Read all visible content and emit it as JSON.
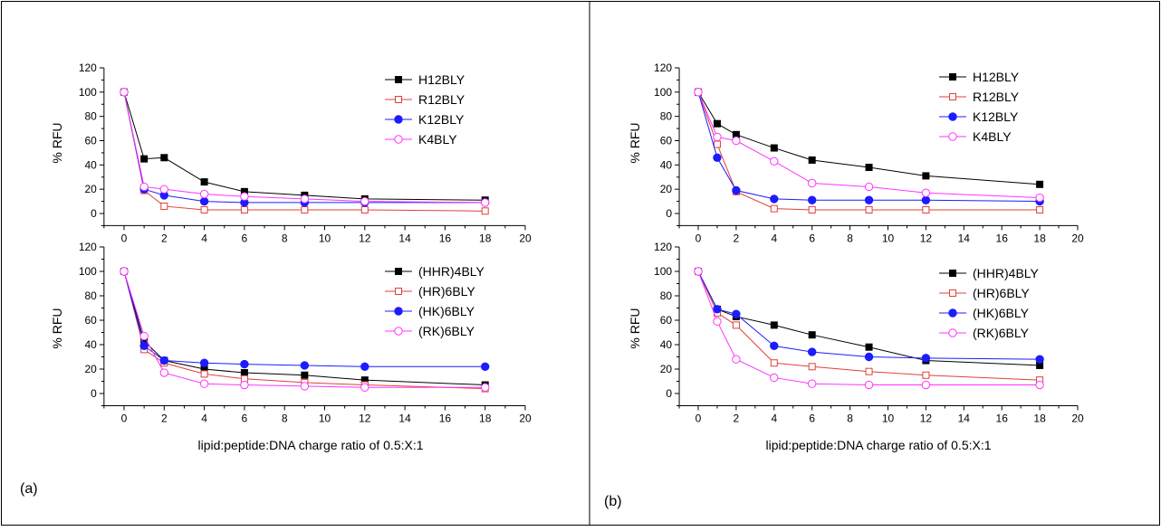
{
  "figure": {
    "panel_labels": [
      "(a)",
      "(b)"
    ],
    "ylabel": "% RFU",
    "xlabel": "lipid:peptide:DNA charge ratio of 0.5:X:1"
  },
  "colors": {
    "black": "#000000",
    "red": "#e0403a",
    "blue": "#1c1cff",
    "magenta": "#ff33ff"
  },
  "chart_data": [
    {
      "panel": "(a)",
      "position": "top",
      "type": "line",
      "ylabel": "% RFU",
      "xlabel": "",
      "xlim": [
        -1,
        20
      ],
      "ylim": [
        -10,
        120
      ],
      "xticks": [
        0,
        2,
        4,
        6,
        8,
        10,
        12,
        14,
        16,
        18,
        20
      ],
      "yticks": [
        0,
        20,
        40,
        60,
        80,
        100,
        120
      ],
      "legend": "top-right",
      "series": [
        {
          "name": "H12BLY",
          "color": "#000000",
          "marker": "square-filled",
          "x": [
            0,
            1,
            2,
            4,
            6,
            9,
            12,
            18
          ],
          "y": [
            100,
            45,
            46,
            26,
            18,
            15,
            12,
            11
          ]
        },
        {
          "name": "R12BLY",
          "color": "#e0403a",
          "marker": "square-open",
          "x": [
            0,
            1,
            2,
            4,
            6,
            9,
            12,
            18
          ],
          "y": [
            100,
            19,
            6,
            3,
            3,
            3,
            3,
            2
          ]
        },
        {
          "name": "K12BLY",
          "color": "#1c1cff",
          "marker": "circle-filled",
          "x": [
            0,
            1,
            2,
            4,
            6,
            9,
            12,
            18
          ],
          "y": [
            100,
            20,
            15,
            10,
            9,
            9,
            9,
            9
          ]
        },
        {
          "name": "K4BLY",
          "color": "#ff33ff",
          "marker": "circle-open",
          "x": [
            0,
            1,
            2,
            4,
            6,
            9,
            12,
            18
          ],
          "y": [
            100,
            22,
            20,
            16,
            14,
            12,
            10,
            9
          ]
        }
      ]
    },
    {
      "panel": "(a)",
      "position": "bottom",
      "type": "line",
      "ylabel": "% RFU",
      "xlabel": "lipid:peptide:DNA charge ratio of 0.5:X:1",
      "xlim": [
        -1,
        20
      ],
      "ylim": [
        -10,
        120
      ],
      "xticks": [
        0,
        2,
        4,
        6,
        8,
        10,
        12,
        14,
        16,
        18,
        20
      ],
      "yticks": [
        0,
        20,
        40,
        60,
        80,
        100,
        120
      ],
      "legend": "top-right",
      "series": [
        {
          "name": "(HHR)4BLY",
          "color": "#000000",
          "marker": "square-filled",
          "x": [
            0,
            1,
            2,
            4,
            6,
            9,
            12,
            18
          ],
          "y": [
            100,
            43,
            27,
            20,
            17,
            15,
            11,
            7
          ]
        },
        {
          "name": "(HR)6BLY",
          "color": "#e0403a",
          "marker": "square-open",
          "x": [
            0,
            1,
            2,
            4,
            6,
            9,
            12,
            18
          ],
          "y": [
            100,
            36,
            25,
            16,
            12,
            9,
            7,
            4
          ]
        },
        {
          "name": "(HK)6BLY",
          "color": "#1c1cff",
          "marker": "circle-filled",
          "x": [
            0,
            1,
            2,
            4,
            6,
            9,
            12,
            18
          ],
          "y": [
            100,
            39,
            27,
            25,
            24,
            23,
            22,
            22
          ]
        },
        {
          "name": "(RK)6BLY",
          "color": "#ff33ff",
          "marker": "circle-open",
          "x": [
            0,
            1,
            2,
            4,
            6,
            9,
            12,
            18
          ],
          "y": [
            100,
            47,
            17,
            8,
            7,
            6,
            5,
            5
          ]
        }
      ]
    },
    {
      "panel": "(b)",
      "position": "top",
      "type": "line",
      "ylabel": "% RFU",
      "xlabel": "",
      "xlim": [
        -1,
        20
      ],
      "ylim": [
        -10,
        120
      ],
      "xticks": [
        0,
        2,
        4,
        6,
        8,
        10,
        12,
        14,
        16,
        18,
        20
      ],
      "yticks": [
        0,
        20,
        40,
        60,
        80,
        100,
        120
      ],
      "legend": "top-right",
      "series": [
        {
          "name": "H12BLY",
          "color": "#000000",
          "marker": "square-filled",
          "x": [
            0,
            1,
            2,
            4,
            6,
            9,
            12,
            18
          ],
          "y": [
            100,
            74,
            65,
            54,
            44,
            38,
            31,
            24
          ]
        },
        {
          "name": "R12BLY",
          "color": "#e0403a",
          "marker": "square-open",
          "x": [
            0,
            1,
            2,
            4,
            6,
            9,
            12,
            18
          ],
          "y": [
            100,
            57,
            18,
            4,
            3,
            3,
            3,
            3
          ]
        },
        {
          "name": "K12BLY",
          "color": "#1c1cff",
          "marker": "circle-filled",
          "x": [
            0,
            1,
            2,
            4,
            6,
            9,
            12,
            18
          ],
          "y": [
            100,
            46,
            19,
            12,
            11,
            11,
            11,
            10
          ]
        },
        {
          "name": "K4BLY",
          "color": "#ff33ff",
          "marker": "circle-open",
          "x": [
            0,
            1,
            2,
            4,
            6,
            9,
            12,
            18
          ],
          "y": [
            100,
            63,
            60,
            43,
            25,
            22,
            17,
            13
          ]
        }
      ]
    },
    {
      "panel": "(b)",
      "position": "bottom",
      "type": "line",
      "ylabel": "% RFU",
      "xlabel": "lipid:peptide:DNA charge ratio of 0.5:X:1",
      "xlim": [
        -1,
        20
      ],
      "ylim": [
        -10,
        120
      ],
      "xticks": [
        0,
        2,
        4,
        6,
        8,
        10,
        12,
        14,
        16,
        18,
        20
      ],
      "yticks": [
        0,
        20,
        40,
        60,
        80,
        100,
        120
      ],
      "legend": "top-right",
      "series": [
        {
          "name": "(HHR)4BLY",
          "color": "#000000",
          "marker": "square-filled",
          "x": [
            0,
            1,
            2,
            4,
            6,
            9,
            12,
            18
          ],
          "y": [
            100,
            69,
            63,
            56,
            48,
            38,
            27,
            23
          ]
        },
        {
          "name": "(HR)6BLY",
          "color": "#e0403a",
          "marker": "square-open",
          "x": [
            0,
            1,
            2,
            4,
            6,
            9,
            12,
            18
          ],
          "y": [
            100,
            66,
            56,
            25,
            22,
            18,
            15,
            11
          ]
        },
        {
          "name": "(HK)6BLY",
          "color": "#1c1cff",
          "marker": "circle-filled",
          "x": [
            0,
            1,
            2,
            4,
            6,
            9,
            12,
            18
          ],
          "y": [
            100,
            69,
            65,
            39,
            34,
            30,
            29,
            28
          ]
        },
        {
          "name": "(RK)6BLY",
          "color": "#ff33ff",
          "marker": "circle-open",
          "x": [
            0,
            1,
            2,
            4,
            6,
            9,
            12,
            18
          ],
          "y": [
            100,
            59,
            28,
            13,
            8,
            7,
            7,
            7
          ]
        }
      ]
    }
  ]
}
